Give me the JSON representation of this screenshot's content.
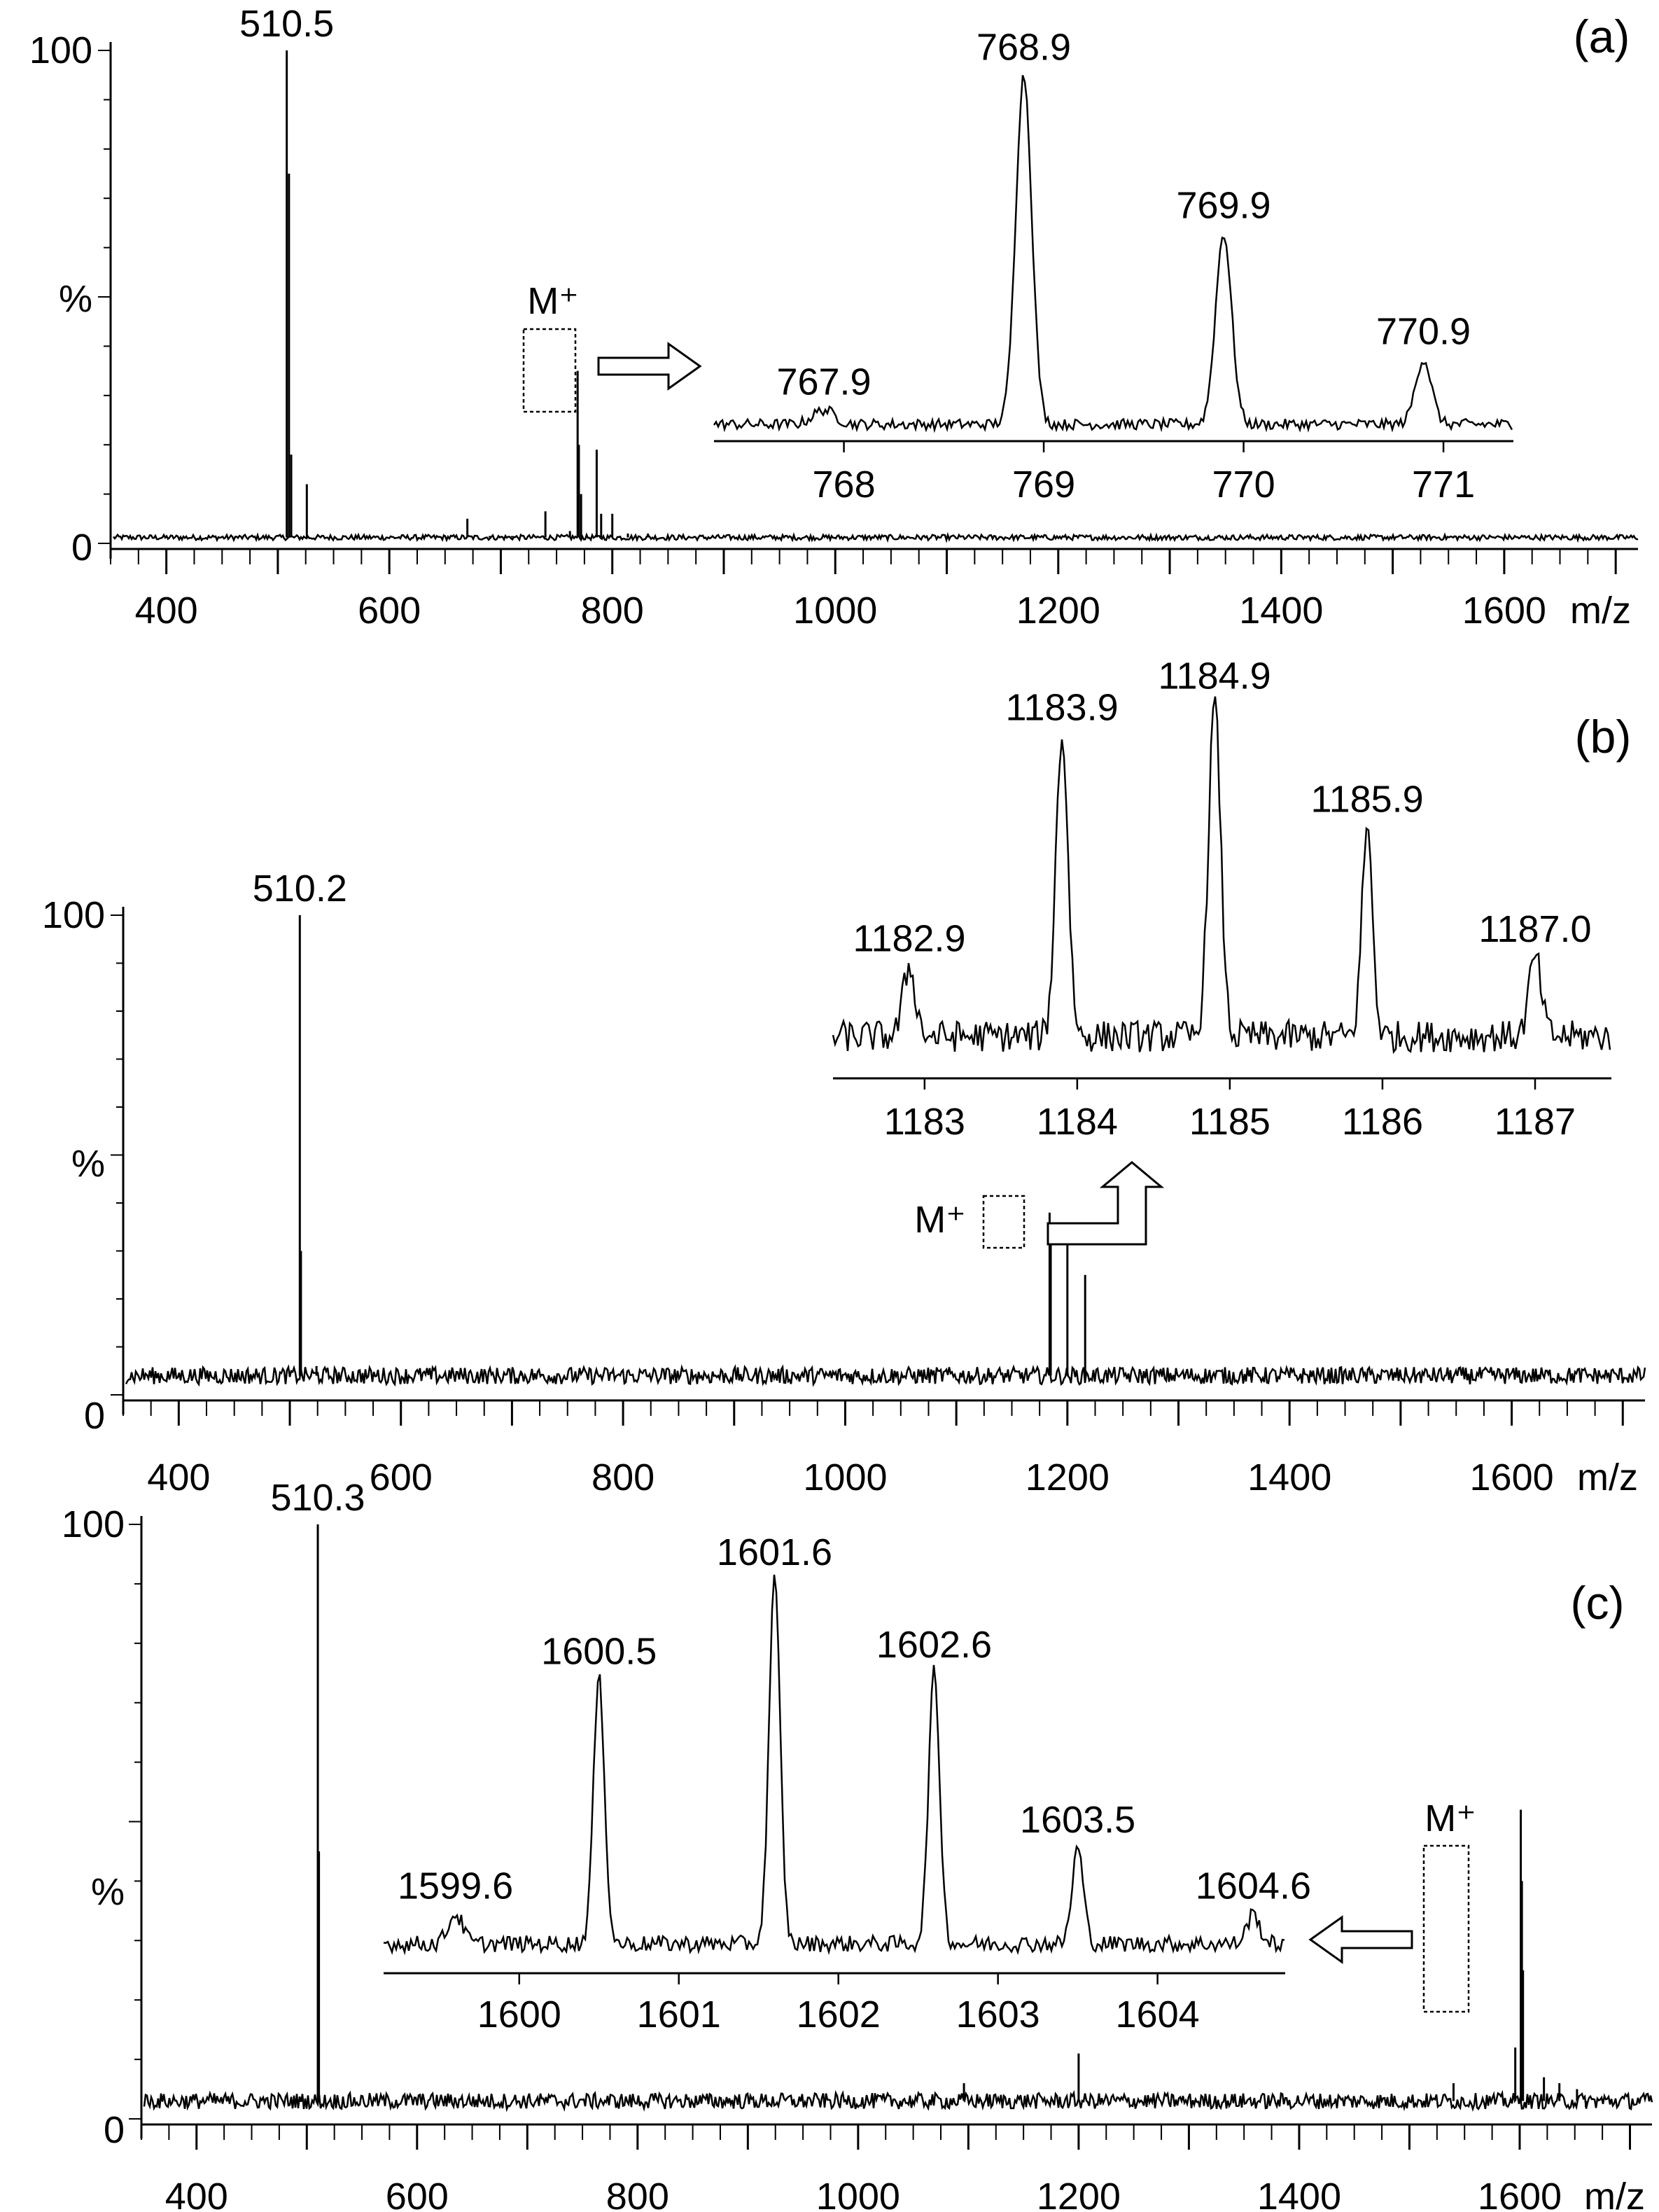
{
  "chart_data": [
    {
      "type": "line",
      "panel_label": "(a)",
      "xlabel": "m/z",
      "ylabel_ticks": [
        "100",
        "%",
        "0"
      ],
      "xlim": [
        350,
        1720
      ],
      "ylim": [
        0,
        100
      ],
      "x_ticks": [
        400,
        600,
        800,
        1000,
        1200,
        1400,
        1600
      ],
      "baseline": 1.2,
      "peaks": [
        [
          508,
          100
        ],
        [
          510,
          75
        ],
        [
          512,
          18
        ],
        [
          526,
          12
        ],
        [
          670,
          5
        ],
        [
          690,
          1.5
        ],
        [
          710,
          1.5
        ],
        [
          740,
          6.5
        ],
        [
          762,
          2.5
        ],
        [
          768.9,
          35
        ],
        [
          770,
          20
        ],
        [
          772,
          10
        ],
        [
          786,
          19
        ],
        [
          790,
          6
        ],
        [
          800,
          6
        ],
        [
          814,
          2
        ],
        [
          832,
          2
        ]
      ],
      "peak_label": "510.5",
      "peak_label_x": 508,
      "m_label": "M⁺",
      "zoom_box": [
        760,
        778
      ],
      "arrow": "right",
      "inset": {
        "xlim": [
          767.35,
          771.35
        ],
        "x_ticks": [
          "768",
          "769",
          "770",
          "771"
        ],
        "noise": 1.5,
        "peaks": [
          [
            767.9,
            4,
            0.11
          ],
          [
            768.9,
            97,
            0.08
          ],
          [
            769.9,
            53,
            0.08
          ],
          [
            770.9,
            18,
            0.08
          ]
        ],
        "labels": [
          [
            "767.9",
            767.9,
            4
          ],
          [
            "768.9",
            768.9,
            97
          ],
          [
            "769.9",
            769.9,
            53
          ],
          [
            "770.9",
            770.9,
            18
          ]
        ]
      }
    },
    {
      "type": "line",
      "panel_label": "(b)",
      "xlabel": "m/z",
      "ylabel_ticks": [
        "100",
        "%",
        "0"
      ],
      "xlim": [
        350,
        1720
      ],
      "ylim": [
        0,
        100
      ],
      "x_ticks": [
        400,
        600,
        800,
        1000,
        1200,
        1400,
        1600
      ],
      "baseline": 4,
      "peaks": [
        [
          509,
          100
        ],
        [
          510,
          30
        ],
        [
          524,
          6
        ],
        [
          708,
          5
        ],
        [
          1088,
          4
        ],
        [
          1100,
          4
        ],
        [
          1184,
          38
        ],
        [
          1185,
          34
        ],
        [
          1200,
          33
        ],
        [
          1216,
          25
        ],
        [
          1240,
          4
        ],
        [
          1262,
          4
        ],
        [
          1320,
          4
        ],
        [
          1336,
          4
        ]
      ],
      "peak_label": "510.2",
      "peak_label_x": 509,
      "m_label": "M⁺",
      "zoom_box": [
        1180,
        1205
      ],
      "arrow": "up",
      "inset": {
        "xlim": [
          1182.4,
          1187.5
        ],
        "x_ticks": [
          "1183",
          "1184",
          "1185",
          "1186",
          "1187"
        ],
        "noise": 5,
        "peaks": [
          [
            1182.9,
            22,
            0.08
          ],
          [
            1183.9,
            95,
            0.08
          ],
          [
            1184.9,
            105,
            0.08
          ],
          [
            1185.9,
            66,
            0.07
          ],
          [
            1187.0,
            25,
            0.08
          ]
        ],
        "labels": [
          [
            "1182.9",
            1182.9,
            22
          ],
          [
            "1183.9",
            1183.9,
            95
          ],
          [
            "1184.9",
            1184.9,
            105
          ],
          [
            "1185.9",
            1185.9,
            66
          ],
          [
            "1187.0",
            1187.0,
            25
          ]
        ]
      }
    },
    {
      "type": "line",
      "panel_label": "(c)",
      "xlabel": "m/z",
      "ylabel_ticks": [
        "100",
        "%",
        "0"
      ],
      "xlim": [
        350,
        1720
      ],
      "ylim": [
        0,
        100
      ],
      "x_ticks": [
        400,
        600,
        800,
        1000,
        1200,
        1400,
        1600
      ],
      "baseline": 3,
      "peaks": [
        [
          510,
          100
        ],
        [
          511,
          45
        ],
        [
          430,
          3
        ],
        [
          1070,
          3
        ],
        [
          1096,
          6
        ],
        [
          1200,
          11
        ],
        [
          1212,
          3
        ],
        [
          1540,
          6
        ],
        [
          1560,
          3
        ],
        [
          1596,
          12
        ],
        [
          1601,
          52
        ],
        [
          1602,
          40
        ],
        [
          1603,
          25
        ],
        [
          1622,
          7
        ],
        [
          1636,
          6
        ],
        [
          1652,
          5
        ],
        [
          1660,
          2
        ]
      ],
      "peak_label": "510.3",
      "peak_label_x": 510,
      "m_label": "M⁺",
      "zoom_box": [
        1590,
        1612
      ],
      "arrow": "left",
      "inset": {
        "xlim": [
          1599.15,
          1604.8
        ],
        "x_ticks": [
          "1600",
          "1601",
          "1602",
          "1603",
          "1604"
        ],
        "noise": 2.5,
        "peaks": [
          [
            1599.6,
            9,
            0.09
          ],
          [
            1600.5,
            80,
            0.07
          ],
          [
            1601.6,
            110,
            0.07
          ],
          [
            1602.6,
            82,
            0.07
          ],
          [
            1603.5,
            29,
            0.07
          ],
          [
            1604.6,
            9,
            0.08
          ]
        ],
        "labels": [
          [
            "1599.6",
            1599.6,
            9
          ],
          [
            "1600.5",
            1600.5,
            80
          ],
          [
            "1601.6",
            1601.6,
            110
          ],
          [
            "1602.6",
            1602.6,
            82
          ],
          [
            "1603.5",
            1603.5,
            29
          ],
          [
            "1604.6",
            1604.6,
            9
          ]
        ]
      }
    }
  ]
}
